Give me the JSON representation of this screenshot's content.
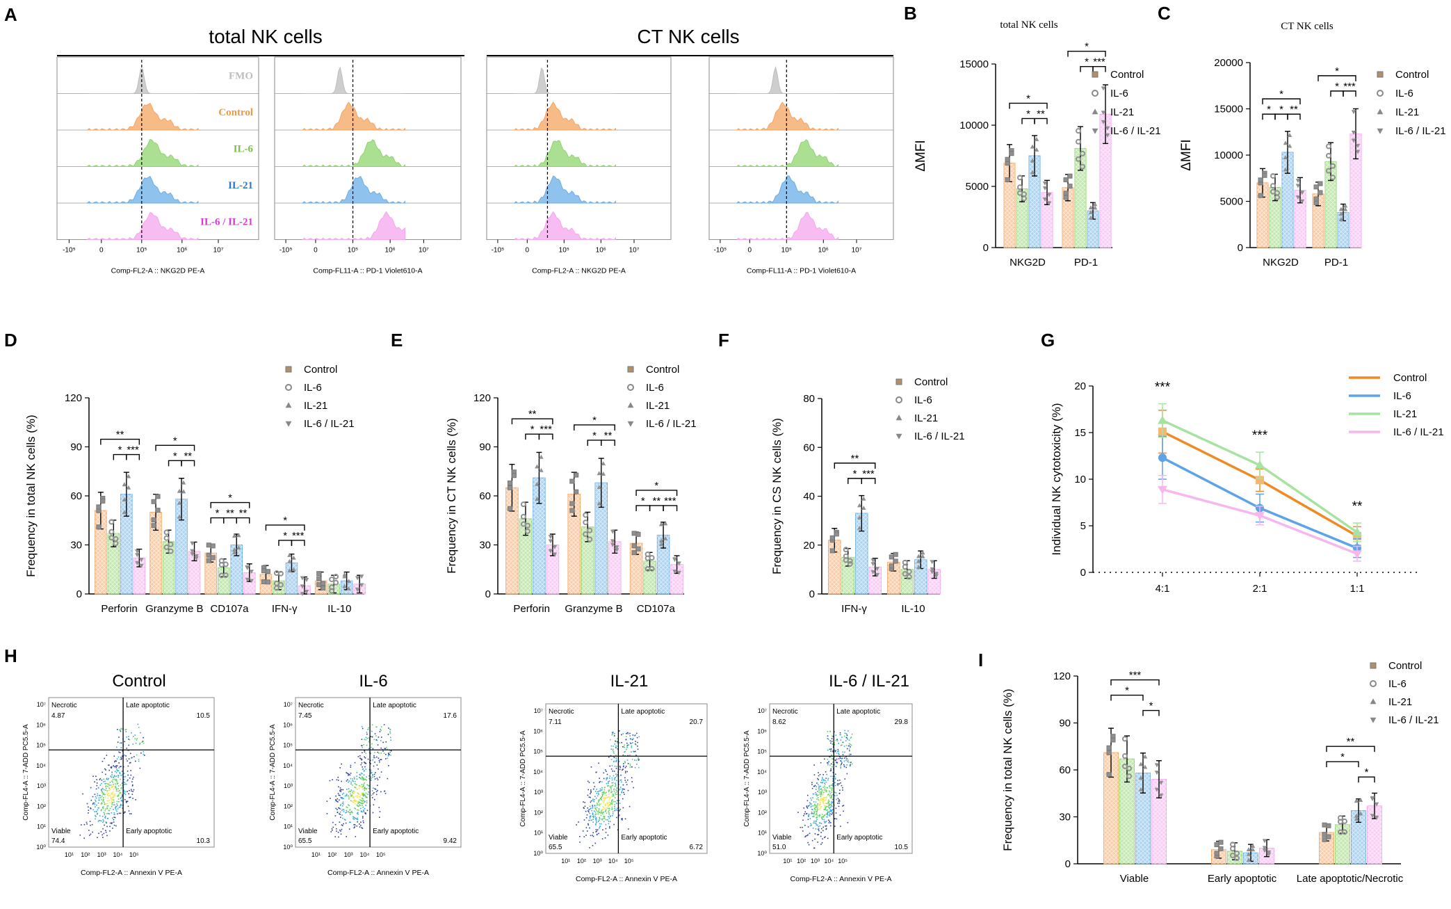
{
  "colors": {
    "control": "#f4a460",
    "il6": "#8fd46e",
    "il21": "#6aaee6",
    "il621": "#f4a6ec",
    "fmo": "#bdbdbd",
    "control_text": "#f29a3a",
    "il6_text": "#7cc24a",
    "il21_text": "#2a78c0",
    "il621_text": "#d63ad6"
  },
  "legend_groups": [
    "Control",
    "IL-6",
    "IL-21",
    "IL-6 / IL-21"
  ],
  "panelA": {
    "letter": "A",
    "title_total": "total NK cells",
    "title_ct": "CT NK cells",
    "rows": [
      "FMO",
      "Control",
      "IL-6",
      "IL-21",
      "IL-6 / IL-21"
    ],
    "xlabels": [
      "Comp-FL2-A :: NKG2D PE-A",
      "Comp-FL11-A :: PD-1 Violet610-A",
      "Comp-FL2-A :: NKG2D PE-A",
      "Comp-FL11-A :: PD-1 Violet610-A"
    ],
    "ticks": [
      "-10⁵",
      "0",
      "10⁵",
      "10⁶",
      "10⁷"
    ]
  },
  "chart_data": [
    {
      "id": "B",
      "type": "bar",
      "title": "total NK cells",
      "ylabel": "ΔMFI",
      "categories": [
        "NKG2D",
        "PD-1"
      ],
      "ylim": [
        0,
        15000
      ],
      "yticks": [
        0,
        5000,
        10000,
        15000
      ],
      "series": [
        {
          "name": "Control",
          "values": [
            6900,
            4900
          ]
        },
        {
          "name": "IL-6",
          "values": [
            4800,
            8100
          ]
        },
        {
          "name": "IL-21",
          "values": [
            7500,
            3000
          ]
        },
        {
          "name": "IL-6 / IL-21",
          "values": [
            4500,
            10900
          ]
        }
      ],
      "sig": [
        {
          "group": 0,
          "from": 0,
          "to": 3,
          "label": "*",
          "level": 2
        },
        {
          "group": 0,
          "from": 1,
          "to": 2,
          "label": "*",
          "level": 1
        },
        {
          "group": 0,
          "from": 2,
          "to": 3,
          "label": "**",
          "level": 1
        },
        {
          "group": 1,
          "from": 0,
          "to": 3,
          "label": "*",
          "level": 2
        },
        {
          "group": 1,
          "from": 1,
          "to": 2,
          "label": "*",
          "level": 1
        },
        {
          "group": 1,
          "from": 2,
          "to": 3,
          "label": "***",
          "level": 1
        }
      ]
    },
    {
      "id": "C",
      "type": "bar",
      "title": "CT NK cells",
      "ylabel": "ΔMFI",
      "categories": [
        "NKG2D",
        "PD-1"
      ],
      "ylim": [
        0,
        20000
      ],
      "yticks": [
        0,
        5000,
        10000,
        15000,
        20000
      ],
      "series": [
        {
          "name": "Control",
          "values": [
            7000,
            5800
          ]
        },
        {
          "name": "IL-6",
          "values": [
            6500,
            9300
          ]
        },
        {
          "name": "IL-21",
          "values": [
            10300,
            3800
          ]
        },
        {
          "name": "IL-6 / IL-21",
          "values": [
            6200,
            12300
          ]
        }
      ],
      "sig": [
        {
          "group": 0,
          "from": 0,
          "to": 3,
          "label": "*",
          "level": 2
        },
        {
          "group": 0,
          "from": 0,
          "to": 1,
          "label": "*",
          "level": 1
        },
        {
          "group": 0,
          "from": 1,
          "to": 2,
          "label": "*",
          "level": 1
        },
        {
          "group": 0,
          "from": 2,
          "to": 3,
          "label": "**",
          "level": 1
        },
        {
          "group": 1,
          "from": 0,
          "to": 3,
          "label": "*",
          "level": 2
        },
        {
          "group": 1,
          "from": 1,
          "to": 2,
          "label": "*",
          "level": 1
        },
        {
          "group": 1,
          "from": 2,
          "to": 3,
          "label": "***",
          "level": 1
        }
      ]
    },
    {
      "id": "D",
      "type": "bar",
      "ylabel": "Frequency in total NK cells (%)",
      "categories": [
        "Perforin",
        "Granzyme B",
        "CD107a",
        "IFN-γ",
        "IL-10"
      ],
      "ylim": [
        0,
        120
      ],
      "yticks": [
        0,
        30,
        60,
        90,
        120
      ],
      "series": [
        {
          "name": "Control",
          "values": [
            51,
            50,
            25,
            12,
            8
          ]
        },
        {
          "name": "IL-6",
          "values": [
            37,
            32,
            16,
            8,
            6
          ]
        },
        {
          "name": "IL-21",
          "values": [
            61,
            58,
            30,
            19,
            8
          ]
        },
        {
          "name": "IL-6 / IL-21",
          "values": [
            22,
            26,
            13,
            5,
            6
          ]
        }
      ],
      "sig": [
        {
          "group": 0,
          "from": 0,
          "to": 3,
          "label": "**",
          "level": 2
        },
        {
          "group": 0,
          "from": 1,
          "to": 2,
          "label": "*",
          "level": 1
        },
        {
          "group": 0,
          "from": 2,
          "to": 3,
          "label": "***",
          "level": 1
        },
        {
          "group": 1,
          "from": 0,
          "to": 3,
          "label": "*",
          "level": 2
        },
        {
          "group": 1,
          "from": 1,
          "to": 2,
          "label": "*",
          "level": 1
        },
        {
          "group": 1,
          "from": 2,
          "to": 3,
          "label": "**",
          "level": 1
        },
        {
          "group": 2,
          "from": 0,
          "to": 3,
          "label": "*",
          "level": 2
        },
        {
          "group": 2,
          "from": 0,
          "to": 1,
          "label": "*",
          "level": 1
        },
        {
          "group": 2,
          "from": 1,
          "to": 2,
          "label": "**",
          "level": 1
        },
        {
          "group": 2,
          "from": 2,
          "to": 3,
          "label": "**",
          "level": 1
        },
        {
          "group": 3,
          "from": 0,
          "to": 3,
          "label": "*",
          "level": 2
        },
        {
          "group": 3,
          "from": 1,
          "to": 2,
          "label": "*",
          "level": 1
        },
        {
          "group": 3,
          "from": 2,
          "to": 3,
          "label": "***",
          "level": 1
        }
      ]
    },
    {
      "id": "E",
      "type": "bar",
      "ylabel": "Frequency in CT NK cells  (%)",
      "categories": [
        "Perforin",
        "Granzyme B",
        "CD107a"
      ],
      "ylim": [
        0,
        120
      ],
      "yticks": [
        0,
        30,
        60,
        90,
        120
      ],
      "series": [
        {
          "name": "Control",
          "values": [
            65,
            61,
            31
          ]
        },
        {
          "name": "IL-6",
          "values": [
            46,
            41,
            20
          ]
        },
        {
          "name": "IL-21",
          "values": [
            71,
            68,
            36
          ]
        },
        {
          "name": "IL-6 / IL-21",
          "values": [
            30,
            32,
            18
          ]
        }
      ],
      "sig": [
        {
          "group": 0,
          "from": 0,
          "to": 3,
          "label": "**",
          "level": 2
        },
        {
          "group": 0,
          "from": 1,
          "to": 2,
          "label": "*",
          "level": 1
        },
        {
          "group": 0,
          "from": 2,
          "to": 3,
          "label": "***",
          "level": 1
        },
        {
          "group": 1,
          "from": 0,
          "to": 3,
          "label": "*",
          "level": 2
        },
        {
          "group": 1,
          "from": 1,
          "to": 2,
          "label": "*",
          "level": 1
        },
        {
          "group": 1,
          "from": 2,
          "to": 3,
          "label": "**",
          "level": 1
        },
        {
          "group": 2,
          "from": 0,
          "to": 3,
          "label": "*",
          "level": 2
        },
        {
          "group": 2,
          "from": 0,
          "to": 1,
          "label": "*",
          "level": 1
        },
        {
          "group": 2,
          "from": 1,
          "to": 2,
          "label": "**",
          "level": 1
        },
        {
          "group": 2,
          "from": 2,
          "to": 3,
          "label": "***",
          "level": 1
        }
      ]
    },
    {
      "id": "F",
      "type": "bar",
      "ylabel": "Frequency in CS NK cells  (%)",
      "categories": [
        "IFN-γ",
        "IL-10"
      ],
      "ylim": [
        0,
        80
      ],
      "yticks": [
        0,
        20,
        40,
        60,
        80
      ],
      "series": [
        {
          "name": "Control",
          "values": [
            22,
            13
          ]
        },
        {
          "name": "IL-6",
          "values": [
            15,
            10
          ]
        },
        {
          "name": "IL-21",
          "values": [
            33,
            14
          ]
        },
        {
          "name": "IL-6 / IL-21",
          "values": [
            11,
            10
          ]
        }
      ],
      "sig": [
        {
          "group": 0,
          "from": 0,
          "to": 3,
          "label": "**",
          "level": 2
        },
        {
          "group": 0,
          "from": 1,
          "to": 2,
          "label": "*",
          "level": 1
        },
        {
          "group": 0,
          "from": 2,
          "to": 3,
          "label": "***",
          "level": 1
        }
      ]
    },
    {
      "id": "G",
      "type": "line",
      "ylabel": "Individual NK cytotoxicity (%)",
      "x": [
        "4:1",
        "2:1",
        "1:1"
      ],
      "ylim": [
        0,
        20
      ],
      "yticks": [
        0,
        5,
        10,
        15,
        20
      ],
      "series": [
        {
          "name": "Control",
          "values": [
            15.1,
            9.9,
            3.9
          ],
          "err": [
            2.3,
            1.2,
            1.0
          ]
        },
        {
          "name": "IL-6",
          "values": [
            12.3,
            6.9,
            2.6
          ],
          "err": [
            2.3,
            1.5,
            1.0
          ]
        },
        {
          "name": "IL-21",
          "values": [
            16.3,
            11.5,
            4.3
          ],
          "err": [
            1.8,
            1.4,
            1.0
          ]
        },
        {
          "name": "IL-6 / IL-21",
          "values": [
            8.9,
            6.1,
            2.0
          ],
          "err": [
            1.5,
            1.0,
            0.8
          ]
        }
      ],
      "stars": [
        "***",
        "***",
        "**"
      ]
    },
    {
      "id": "H",
      "type": "scatter",
      "plots": [
        {
          "title": "Control",
          "necrotic": "4.87",
          "late": "10.5",
          "viable": "74.4",
          "early": "10.3"
        },
        {
          "title": "IL-6",
          "necrotic": "7.45",
          "late": "17.6",
          "viable": "65.5",
          "early": "9.42"
        },
        {
          "title": "IL-21",
          "necrotic": "7.11",
          "late": "20.7",
          "viable": "65.5",
          "early": "6.72"
        },
        {
          "title": "IL-6  /  IL-21",
          "necrotic": "8.62",
          "late": "29.8",
          "viable": "51.0",
          "early": "10.5"
        }
      ],
      "labels": {
        "necrotic": "Necrotic",
        "late": "Late apoptotic",
        "viable": "Viable",
        "early": "Early apoptotic"
      },
      "xlabel": "Comp-FL2-A :: Annexin V PE-A",
      "ylabel": "Comp-FL4-A :: 7-ADD PC5.5-A",
      "ticks": [
        "10⁰",
        "10¹",
        "10²",
        "10³",
        "10⁴",
        "10⁵",
        "10⁶",
        "10⁷"
      ]
    },
    {
      "id": "I",
      "type": "bar",
      "ylabel": "Frequency in total NK cells (%)",
      "categories": [
        "Viable",
        "Early apoptotic",
        "Late apoptotic/Necrotic"
      ],
      "ylim": [
        0,
        120
      ],
      "yticks": [
        0,
        30,
        60,
        90,
        120
      ],
      "series": [
        {
          "name": "Control",
          "values": [
            71,
            9,
            20
          ]
        },
        {
          "name": "IL-6",
          "values": [
            67,
            8,
            25
          ]
        },
        {
          "name": "IL-21",
          "values": [
            58,
            7,
            34
          ]
        },
        {
          "name": "IL-6 / IL-21",
          "values": [
            54,
            10,
            37
          ]
        }
      ],
      "sig": [
        {
          "group": 0,
          "from": 0,
          "to": 3,
          "label": "***",
          "level": 3
        },
        {
          "group": 0,
          "from": 0,
          "to": 2,
          "label": "*",
          "level": 2
        },
        {
          "group": 0,
          "from": 2,
          "to": 3,
          "label": "*",
          "level": 1
        },
        {
          "group": 2,
          "from": 0,
          "to": 3,
          "label": "**",
          "level": 3
        },
        {
          "group": 2,
          "from": 0,
          "to": 2,
          "label": "*",
          "level": 2
        },
        {
          "group": 2,
          "from": 2,
          "to": 3,
          "label": "*",
          "level": 1
        }
      ]
    }
  ]
}
